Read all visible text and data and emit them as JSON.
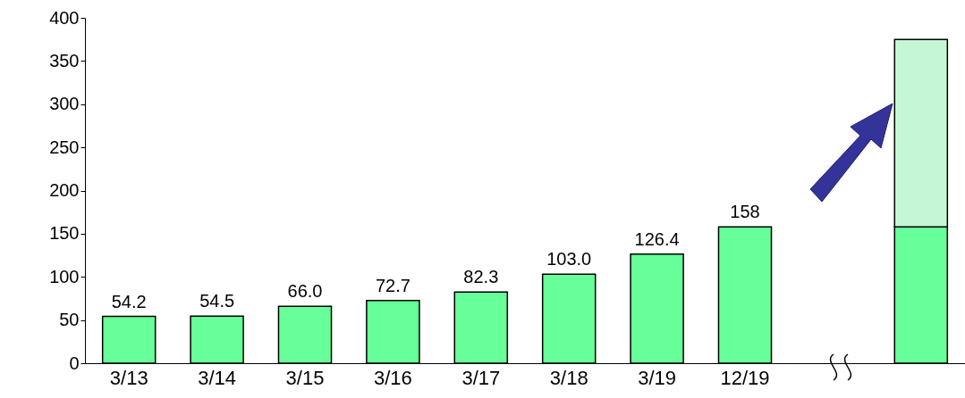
{
  "chart_data": {
    "type": "bar",
    "stacked": true,
    "categories": [
      "3/13",
      "3/14",
      "3/15",
      "3/16",
      "3/17",
      "3/18",
      "3/19",
      "12/19",
      null,
      null
    ],
    "series": [
      {
        "color": "#66ff99",
        "values": [
          54.2,
          54.5,
          66.0,
          72.7,
          82.3,
          103.0,
          126.4,
          158,
          null,
          158
        ],
        "value_labels": [
          "54.2",
          "54.5",
          "66.0",
          "72.7",
          "82.3",
          "103.0",
          "126.4",
          "158",
          null,
          null
        ]
      },
      {
        "color": "#c4f7d6",
        "values": [
          null,
          null,
          null,
          null,
          null,
          null,
          null,
          null,
          null,
          217
        ]
      }
    ],
    "ylim": [
      0,
      400
    ],
    "yticks": [
      0,
      50,
      100,
      150,
      200,
      250,
      300,
      350,
      400
    ],
    "grid": false
  }
}
